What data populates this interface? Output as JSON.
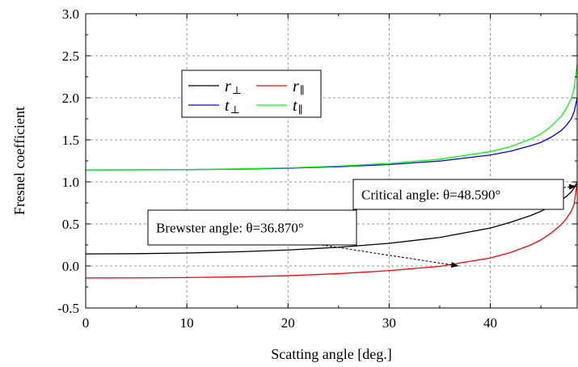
{
  "chart_data": {
    "type": "line",
    "xlabel": "Scatting angle [deg.]",
    "ylabel": "Fresnel coefficient",
    "xlim": [
      0,
      48.59
    ],
    "ylim": [
      -0.5,
      3.0
    ],
    "xticks": [
      0,
      10,
      20,
      30,
      40
    ],
    "yticks": [
      -0.5,
      0.0,
      0.5,
      1.0,
      1.5,
      2.0,
      2.5,
      3.0
    ],
    "ytick_labels": [
      "-0.5",
      "0.0",
      "0.5",
      "1.0",
      "1.5",
      "2.0",
      "2.5",
      "3.0"
    ],
    "grid": true,
    "legend_position": "upper-left",
    "x": [
      0,
      5,
      10,
      15,
      20,
      25,
      30,
      35,
      40,
      42,
      44,
      45,
      46,
      47,
      47.5,
      48,
      48.3,
      48.59
    ],
    "series": [
      {
        "name": "r⊥",
        "label_main": "r",
        "label_sub": "⊥",
        "color": "#000000",
        "values": [
          0.143,
          0.146,
          0.154,
          0.168,
          0.19,
          0.222,
          0.269,
          0.339,
          0.451,
          0.519,
          0.6,
          0.65,
          0.71,
          0.78,
          0.825,
          0.88,
          0.93,
          1.0
        ]
      },
      {
        "name": "r∥",
        "label_main": "r",
        "label_sub": "∥",
        "color": "#ff0000",
        "values": [
          -0.143,
          -0.142,
          -0.138,
          -0.13,
          -0.116,
          -0.092,
          -0.055,
          -0.005,
          0.095,
          0.16,
          0.25,
          0.31,
          0.39,
          0.49,
          0.56,
          0.65,
          0.74,
          1.0
        ]
      },
      {
        "name": "t⊥",
        "label_main": "t",
        "label_sub": "⊥",
        "color": "#0000ff",
        "values": [
          1.143,
          1.144,
          1.146,
          1.152,
          1.163,
          1.181,
          1.207,
          1.248,
          1.32,
          1.365,
          1.43,
          1.47,
          1.53,
          1.61,
          1.67,
          1.75,
          1.84,
          2.0
        ]
      },
      {
        "name": "t∥",
        "label_main": "t",
        "label_sub": "∥",
        "color": "#00ff00",
        "values": [
          1.143,
          1.145,
          1.148,
          1.155,
          1.167,
          1.188,
          1.22,
          1.27,
          1.36,
          1.42,
          1.51,
          1.57,
          1.66,
          1.78,
          1.87,
          1.99,
          2.12,
          2.4
        ]
      }
    ],
    "annotations": [
      {
        "text": "Critical angle: θ=48.590°",
        "x": 48.59,
        "y": 0.95
      },
      {
        "text": "Brewster angle: θ=36.870°",
        "x": 36.87,
        "y": 0.0
      }
    ]
  }
}
